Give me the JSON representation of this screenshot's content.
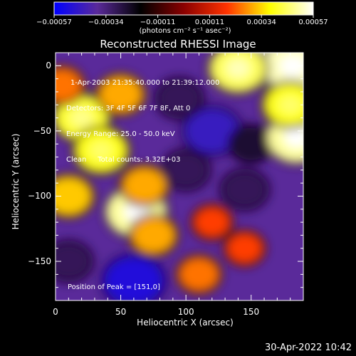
{
  "chart_data": {
    "type": "heatmap",
    "title": "Reconstructed RHESSI Image",
    "xlabel": "Heliocentric X (arcsec)",
    "ylabel": "Heliocentric Y (arcsec)",
    "xlim": [
      0,
      190
    ],
    "ylim": [
      -180,
      10
    ],
    "xticks": [
      "0",
      "50",
      "100",
      "150"
    ],
    "xtick_values": [
      0,
      50,
      100,
      150
    ],
    "yticks": [
      "0",
      "−50",
      "−100",
      "−150"
    ],
    "ytick_values": [
      0,
      -50,
      -100,
      -150
    ],
    "colorbar": {
      "ticks": [
        "−0.00057",
        "−0.00034",
        "−0.00011",
        "0.00011",
        "0.00034",
        "0.00057"
      ],
      "units": "(photons cm⁻² s⁻¹ asec⁻²)",
      "range": [
        -0.00057,
        0.00057
      ],
      "colormap": [
        "#0000ff",
        "#5a2a9a",
        "#000000",
        "#8a0000",
        "#ff3300",
        "#ffff00",
        "#ffffff"
      ]
    },
    "info_lines": [
      "1-Apr-2003 21:35:40.000 to 21:39:12.000",
      "Detectors: 3F 4F 5F 6F 7F 8F, Att 0",
      "Energy Range: 25.0 - 50.0 keV",
      "Clean     Total counts: 3.32E+03"
    ],
    "peak_label": "Position of Peak = [151,0]",
    "hotspots": [
      {
        "x": 165,
        "y": 5,
        "value": 0.00057
      },
      {
        "x": 182,
        "y": 0,
        "value": 0.00052
      },
      {
        "x": 140,
        "y": -2,
        "value": 0.00045
      },
      {
        "x": 20,
        "y": -40,
        "value": 0.00042
      },
      {
        "x": 35,
        "y": -65,
        "value": 0.0004
      },
      {
        "x": 62,
        "y": -112,
        "value": 0.0005
      },
      {
        "x": 68,
        "y": -92,
        "value": 0.0003
      },
      {
        "x": 10,
        "y": -100,
        "value": 0.00033
      },
      {
        "x": 50,
        "y": -22,
        "value": 0.0003
      },
      {
        "x": 5,
        "y": -15,
        "value": 0.00025
      },
      {
        "x": 75,
        "y": -130,
        "value": 0.0003
      },
      {
        "x": 185,
        "y": -55,
        "value": 0.0005
      },
      {
        "x": 180,
        "y": -30,
        "value": 0.0004
      },
      {
        "x": 110,
        "y": -160,
        "value": 0.00025
      },
      {
        "x": 145,
        "y": -140,
        "value": 0.0002
      },
      {
        "x": 120,
        "y": -120,
        "value": 0.0002
      }
    ],
    "coldspots": [
      {
        "x": 120,
        "y": -50,
        "value": -0.00045
      },
      {
        "x": 100,
        "y": -80,
        "value": -0.0003
      },
      {
        "x": 60,
        "y": -165,
        "value": -0.0005
      },
      {
        "x": 145,
        "y": -95,
        "value": -0.0003
      },
      {
        "x": 95,
        "y": -25,
        "value": -0.0003
      },
      {
        "x": 150,
        "y": -60,
        "value": -0.00025
      },
      {
        "x": 10,
        "y": -150,
        "value": -0.0003
      }
    ]
  },
  "timestamp": "30-Apr-2022 10:42"
}
